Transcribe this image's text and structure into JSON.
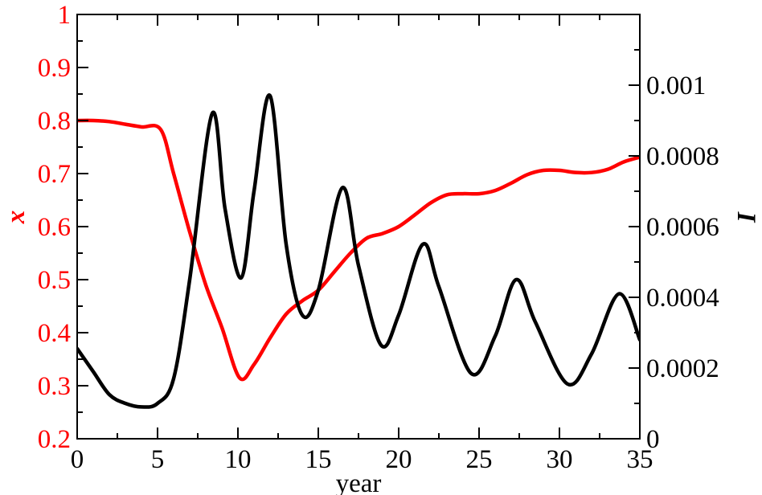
{
  "chart_data": {
    "type": "line",
    "xlabel": "year",
    "ylabel_left": "x",
    "ylabel_right": "I",
    "xlim": [
      0,
      35
    ],
    "ylim_left": [
      0.2,
      1.0
    ],
    "ylim_right": [
      0,
      0.0012
    ],
    "x_ticks": [
      0,
      5,
      10,
      15,
      20,
      25,
      30,
      35
    ],
    "x_tick_labels": [
      "0",
      "5",
      "10",
      "15",
      "20",
      "25",
      "30",
      "35"
    ],
    "left_ticks": [
      0.2,
      0.3,
      0.4,
      0.5,
      0.6,
      0.7,
      0.8,
      0.9,
      1.0
    ],
    "left_tick_labels": [
      "0.2",
      "0.3",
      "0.4",
      "0.5",
      "0.6",
      "0.7",
      "0.8",
      "0.9",
      "1"
    ],
    "right_ticks": [
      0,
      0.0002,
      0.0004,
      0.0006,
      0.0008,
      0.001
    ],
    "right_tick_labels": [
      "0",
      "0.0002",
      "0.0004",
      "0.0006",
      "0.0008",
      "0.001"
    ],
    "grid": false,
    "colors": {
      "x_series": "#ff0000",
      "I_series": "#000000",
      "axes": "#000000"
    },
    "series": [
      {
        "axis": "left",
        "color": "#ff0000",
        "points": [
          [
            0,
            0.8
          ],
          [
            1,
            0.8
          ],
          [
            2,
            0.798
          ],
          [
            3,
            0.793
          ],
          [
            4,
            0.788
          ],
          [
            5.2,
            0.783
          ],
          [
            6,
            0.7
          ],
          [
            7,
            0.59
          ],
          [
            8,
            0.49
          ],
          [
            9,
            0.41
          ],
          [
            10.1,
            0.315
          ],
          [
            11,
            0.34
          ],
          [
            12,
            0.39
          ],
          [
            13,
            0.435
          ],
          [
            14,
            0.46
          ],
          [
            15,
            0.48
          ],
          [
            16,
            0.515
          ],
          [
            17,
            0.55
          ],
          [
            18,
            0.578
          ],
          [
            19,
            0.587
          ],
          [
            20,
            0.6
          ],
          [
            21,
            0.622
          ],
          [
            22,
            0.645
          ],
          [
            23,
            0.66
          ],
          [
            24,
            0.662
          ],
          [
            25,
            0.662
          ],
          [
            26,
            0.668
          ],
          [
            27,
            0.682
          ],
          [
            28,
            0.698
          ],
          [
            29,
            0.706
          ],
          [
            30,
            0.706
          ],
          [
            31,
            0.702
          ],
          [
            32,
            0.702
          ],
          [
            33,
            0.708
          ],
          [
            34,
            0.722
          ],
          [
            35,
            0.731
          ]
        ]
      },
      {
        "axis": "right",
        "color": "#000000",
        "points": [
          [
            0,
            0.000255
          ],
          [
            1,
            0.00019
          ],
          [
            2,
            0.000125
          ],
          [
            3,
            0.0001
          ],
          [
            4,
            9e-05
          ],
          [
            5,
            0.0001
          ],
          [
            6,
            0.00017
          ],
          [
            7,
            0.00045
          ],
          [
            8.4,
            0.00092
          ],
          [
            9.2,
            0.00065
          ],
          [
            10.2,
            0.000455
          ],
          [
            11,
            0.0007
          ],
          [
            12,
            0.00097
          ],
          [
            13,
            0.00055
          ],
          [
            14,
            0.00035
          ],
          [
            15,
            0.00042
          ],
          [
            16.5,
            0.00071
          ],
          [
            17.5,
            0.00049
          ],
          [
            18.9,
            0.000265
          ],
          [
            20,
            0.00035
          ],
          [
            21.5,
            0.00055
          ],
          [
            22.5,
            0.00043
          ],
          [
            24.5,
            0.000185
          ],
          [
            26,
            0.00029
          ],
          [
            27.3,
            0.00045
          ],
          [
            28.5,
            0.00033
          ],
          [
            30.5,
            0.000155
          ],
          [
            32,
            0.00024
          ],
          [
            33.7,
            0.00041
          ],
          [
            35,
            0.00028
          ]
        ]
      }
    ]
  }
}
